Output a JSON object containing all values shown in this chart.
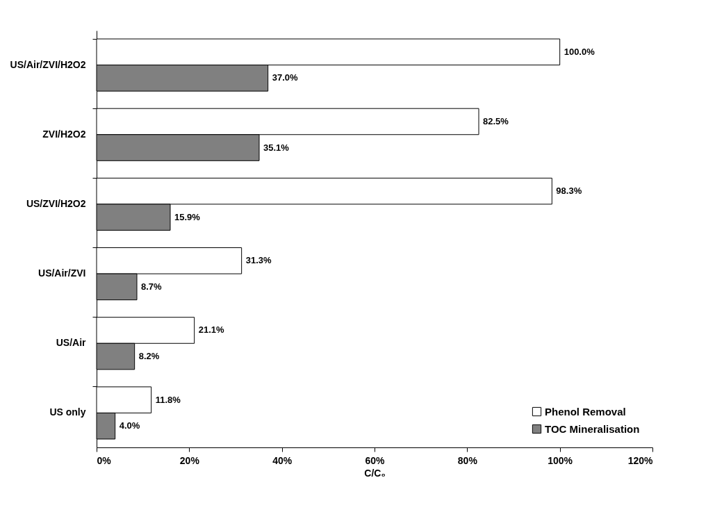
{
  "chart_data": {
    "type": "bar",
    "orientation": "horizontal",
    "xlabel": "C/C₀",
    "categories": [
      "US/Air/ZVI/H2O2",
      "ZVI/H2O2",
      "US/ZVI/H2O2",
      "US/Air/ZVI",
      "US/Air",
      "US only"
    ],
    "series": [
      {
        "name": "Phenol Removal",
        "color": "#ffffff",
        "values": [
          100.0,
          82.5,
          98.3,
          31.3,
          21.1,
          11.8
        ],
        "value_labels": [
          "100.0%",
          "82.5%",
          "98.3%",
          "31.3%",
          "21.1%",
          "11.8%"
        ]
      },
      {
        "name": "TOC Mineralisation",
        "color": "#808080",
        "values": [
          37.0,
          35.1,
          15.9,
          8.7,
          8.2,
          4.0
        ],
        "value_labels": [
          "37.0%",
          "35.1%",
          "15.9%",
          "8.7%",
          "8.2%",
          "4.0%"
        ]
      }
    ],
    "xlim": [
      0,
      120
    ],
    "xticks": [
      {
        "value": 0,
        "label": "0%"
      },
      {
        "value": 20,
        "label": "20%"
      },
      {
        "value": 40,
        "label": "40%"
      },
      {
        "value": 60,
        "label": "60%"
      },
      {
        "value": 80,
        "label": "80%"
      },
      {
        "value": 100,
        "label": "100%"
      },
      {
        "value": 120,
        "label": "120%"
      }
    ],
    "legend": "bottom right",
    "grid": false
  }
}
